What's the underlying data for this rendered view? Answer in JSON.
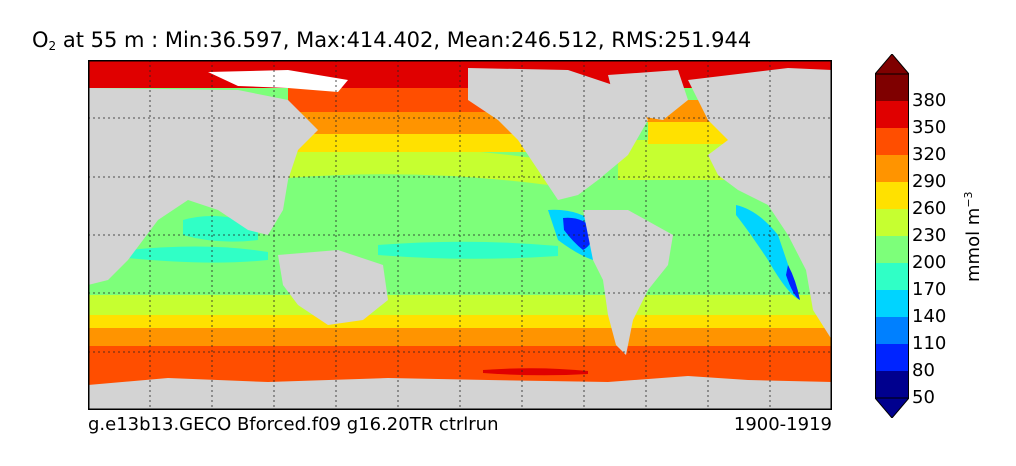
{
  "title": {
    "variable": "O",
    "subscript": "2",
    "rest": " at 55 m : Min:36.597, Max:414.402, Mean:246.512, RMS:251.944"
  },
  "footer": {
    "run": "g.e13b13.GECO Bforced.f09 g16.20TR ctrlrun",
    "period": "1900-1919"
  },
  "colorbar": {
    "units_base": "mmol m",
    "units_exp": "−3",
    "tick_labels": [
      "380",
      "350",
      "320",
      "290",
      "260",
      "230",
      "200",
      "170",
      "140",
      "110",
      "80",
      "50"
    ],
    "colors": [
      "#7f0000",
      "#e00000",
      "#ff4e00",
      "#ff9400",
      "#ffe100",
      "#c6ff30",
      "#7dff7a",
      "#30ffc6",
      "#00d4ff",
      "#0080ff",
      "#0024ff",
      "#00008e"
    ]
  },
  "map_colors": {
    "land": "#d3d3d3",
    "sea_ice": "#ffffff",
    "tropics": "#7dff7a",
    "equatorial_band": "#30ffc6",
    "subtropics": "#c6ff30",
    "midlat": "#ffe100",
    "subpolar": "#ff9400",
    "polar": "#ff4e00",
    "arctic": "#e00000",
    "omz_core": "#0024ff",
    "omz_edge": "#00d4ff"
  }
}
